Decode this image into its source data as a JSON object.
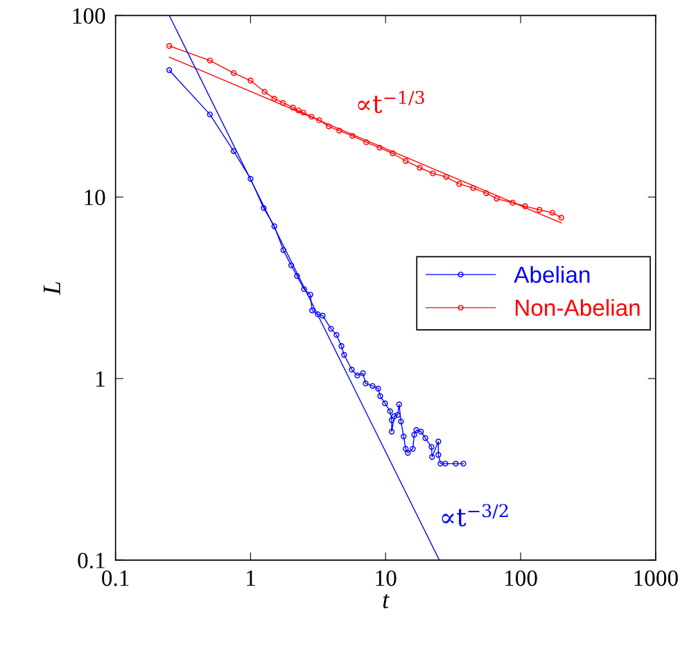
{
  "chart_data": {
    "type": "line",
    "xlabel": "t",
    "ylabel": "L",
    "log": "xy",
    "xlim": [
      0.1,
      1000
    ],
    "ylim": [
      0.1,
      100
    ],
    "xticks": [
      0.1,
      1,
      10,
      100,
      1000
    ],
    "yticks": [
      0.1,
      1,
      10,
      100
    ],
    "grid": false,
    "legend": "right",
    "series": [
      {
        "name": "Abelian",
        "color": "#0000ff",
        "marker": "circle",
        "x": [
          0.25,
          0.5,
          0.75,
          1.0,
          1.25,
          1.5,
          1.75,
          2.0,
          2.21,
          2.49,
          2.77,
          2.86,
          3.15,
          3.42,
          3.94,
          4.33,
          4.71,
          4.93,
          5.62,
          6.18,
          6.79,
          7.12,
          8.01,
          8.81,
          9.13,
          9.91,
          10.8,
          11.1,
          11.1,
          11.6,
          12.3,
          12.6,
          13.0,
          13.6,
          14.1,
          14.6,
          15.9,
          16.3,
          16.9,
          18.3,
          19.7,
          21.9,
          22.1,
          24.6,
          24.6,
          25.5,
          27.7,
          33.1,
          37.7
        ],
        "values": [
          50,
          28.5,
          17.9,
          12.6,
          8.7,
          6.9,
          5.1,
          4.2,
          3.67,
          3.11,
          2.9,
          2.37,
          2.26,
          2.22,
          1.88,
          1.74,
          1.51,
          1.35,
          1.12,
          1.04,
          1.07,
          0.94,
          0.91,
          0.88,
          0.8,
          0.73,
          0.66,
          0.59,
          0.51,
          0.62,
          0.63,
          0.72,
          0.58,
          0.48,
          0.41,
          0.39,
          0.41,
          0.49,
          0.52,
          0.51,
          0.47,
          0.42,
          0.37,
          0.45,
          0.38,
          0.34,
          0.34,
          0.34,
          0.34
        ]
      },
      {
        "name": "Non-Abelian",
        "color": "#ff0000",
        "marker": "circle",
        "x": [
          0.25,
          0.5,
          0.75,
          1.0,
          1.27,
          1.5,
          1.74,
          2.06,
          2.26,
          2.46,
          2.83,
          3.22,
          3.8,
          4.54,
          5.69,
          7.2,
          9.02,
          11.3,
          14.1,
          17.9,
          22.4,
          28.1,
          35.1,
          44.5,
          55.7,
          66.5,
          87.3,
          108,
          138,
          172,
          200
        ],
        "values": [
          68,
          56.5,
          48.2,
          43.8,
          38,
          34.8,
          33,
          31.1,
          30,
          29.2,
          27.7,
          26.5,
          24.5,
          23.2,
          21.7,
          20,
          18.7,
          17.4,
          15.8,
          14.5,
          13.5,
          12.9,
          11.8,
          11.2,
          10.5,
          9.8,
          9.3,
          8.9,
          8.5,
          8.2,
          7.7
        ]
      },
      {
        "name": "∝t$^{−1/3}$",
        "color": "#ff0000",
        "marker": "none",
        "x": [
          0.25,
          200
        ],
        "values": [
          59,
          7.2
        ]
      },
      {
        "name": "∝t$^{−3/2}$",
        "color": "#0000ff",
        "marker": "none",
        "x": [
          0.25,
          25
        ],
        "values": [
          100,
          0.1
        ]
      }
    ]
  }
}
